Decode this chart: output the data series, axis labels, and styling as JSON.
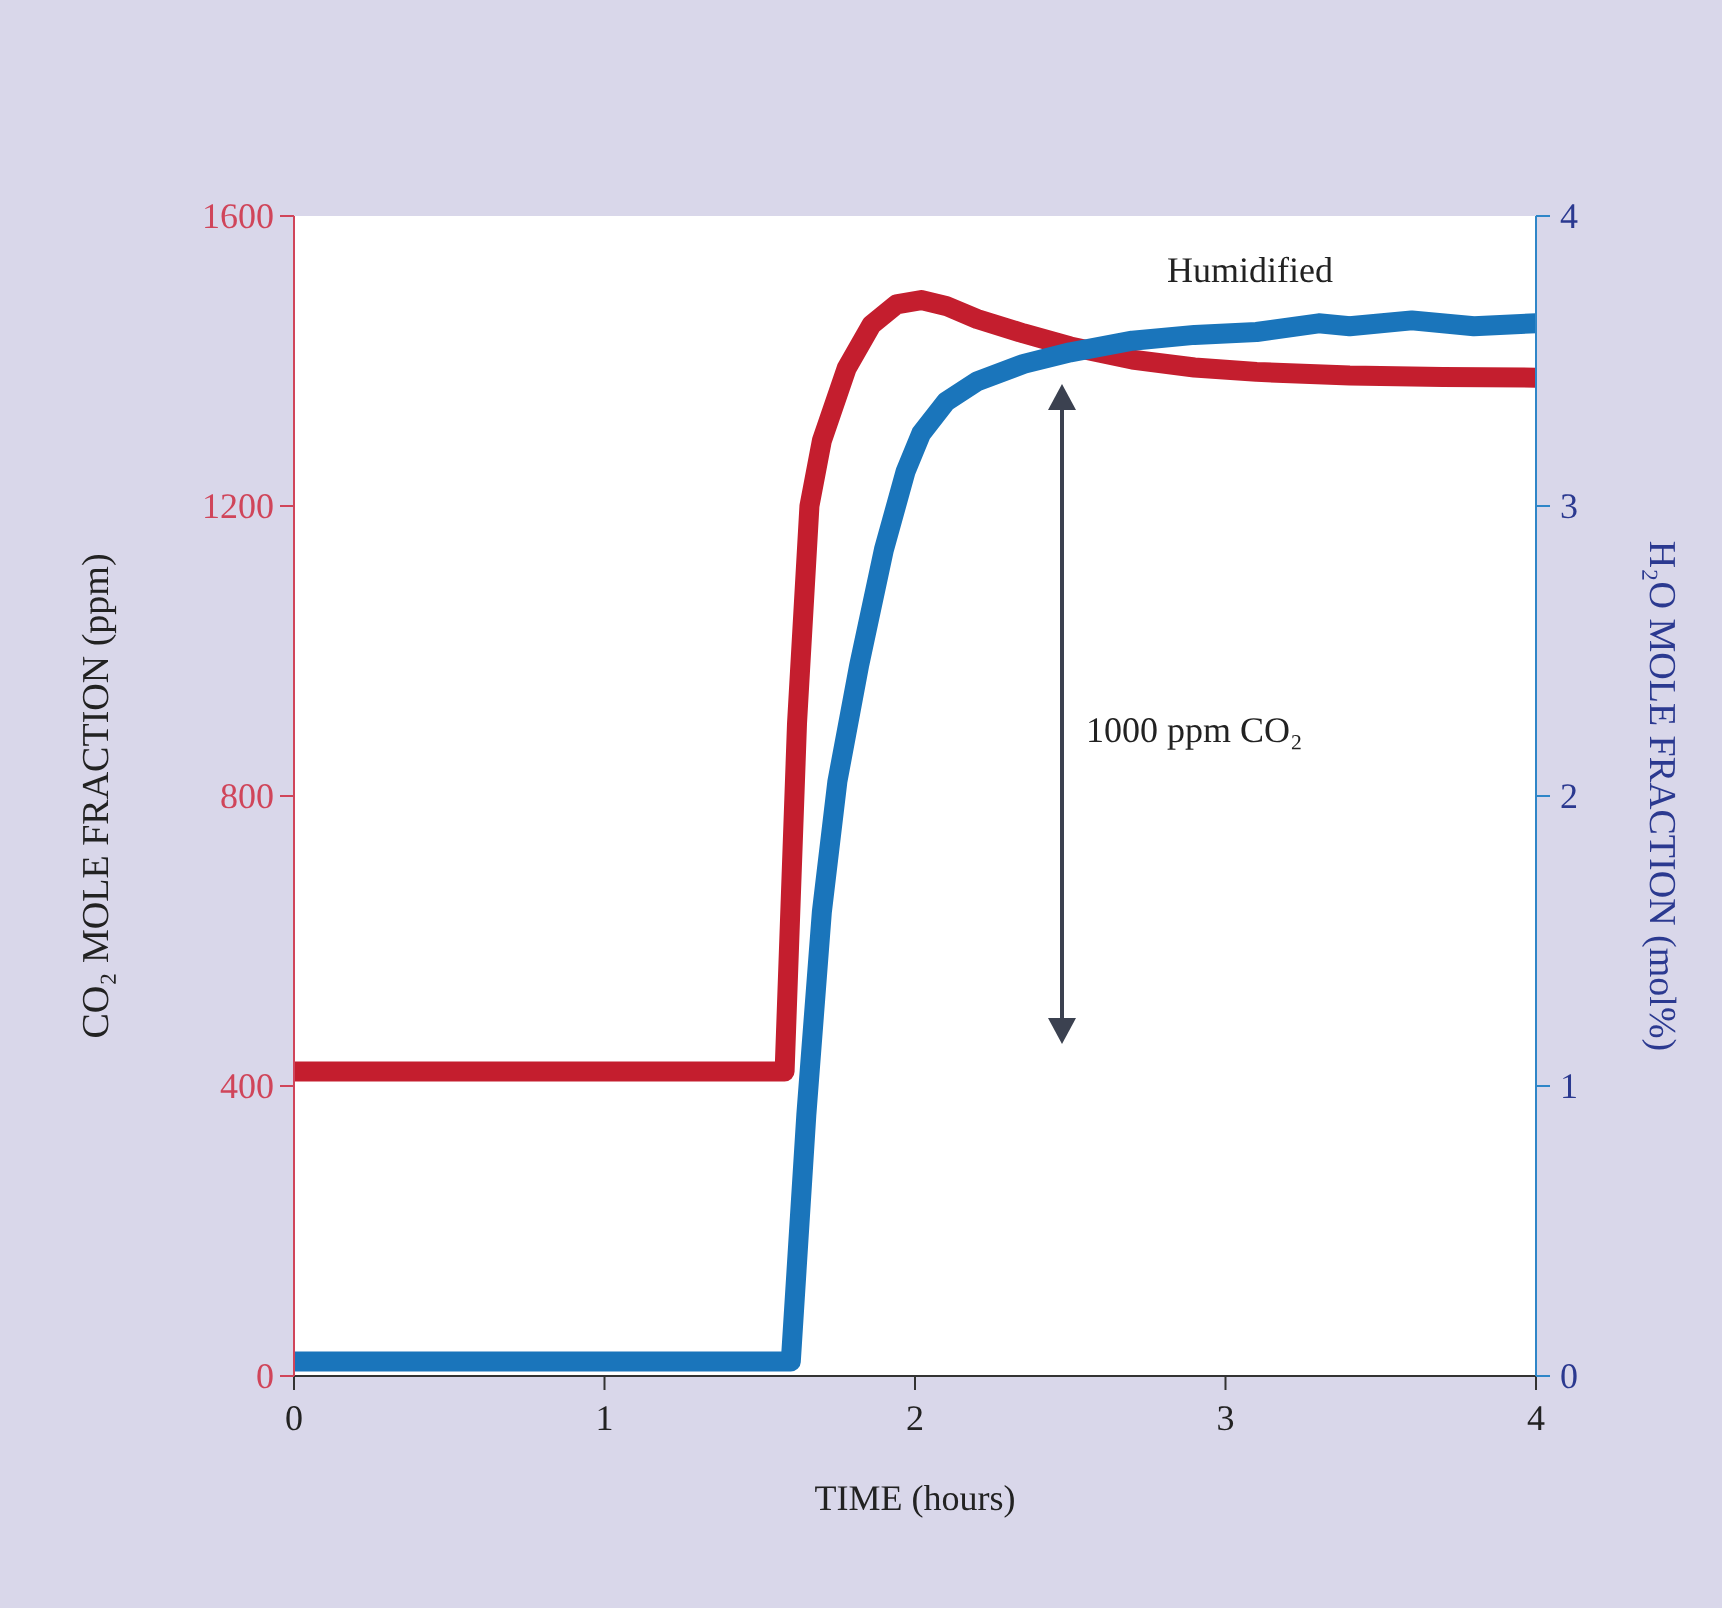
{
  "chart_data": {
    "type": "line",
    "xlabel": "TIME (hours)",
    "ylabel": "CO₂ MOLE FRACTION (ppm)",
    "y2label": "H₂O MOLE FRACTION (mol%)",
    "xlim": [
      0,
      4
    ],
    "xticks": [
      0,
      1,
      2,
      3,
      4
    ],
    "ylim": [
      0,
      1600
    ],
    "yticks": [
      0,
      400,
      800,
      1200,
      1600
    ],
    "y2lim": [
      0,
      4
    ],
    "y2ticks": [
      0,
      1,
      2,
      3,
      4
    ],
    "grid": false,
    "marker": "none",
    "line_style": "solid",
    "series": [
      {
        "color": "#c41e2e",
        "x": [
          0,
          0.5,
          1,
          1.58,
          1.62,
          1.66,
          1.7,
          1.78,
          1.86,
          1.94,
          2.02,
          2.1,
          2.2,
          2.35,
          2.5,
          2.7,
          2.9,
          3.1,
          3.4,
          3.7,
          4
        ],
        "values": [
          420,
          420,
          420,
          420,
          900,
          1200,
          1290,
          1390,
          1450,
          1478,
          1484,
          1476,
          1458,
          1438,
          1420,
          1402,
          1391,
          1385,
          1380,
          1378,
          1377
        ]
      },
      {
        "color": "#1a75bb",
        "axis": "y2",
        "x": [
          0,
          0.5,
          1,
          1.6,
          1.65,
          1.7,
          1.75,
          1.82,
          1.9,
          1.97,
          2.02,
          2.1,
          2.2,
          2.35,
          2.5,
          2.7,
          2.9,
          3.1,
          3.3,
          3.4,
          3.6,
          3.8,
          4
        ],
        "values": [
          0.05,
          0.05,
          0.05,
          0.05,
          0.9,
          1.6,
          2.05,
          2.45,
          2.85,
          3.12,
          3.25,
          3.36,
          3.43,
          3.49,
          3.53,
          3.57,
          3.59,
          3.6,
          3.63,
          3.62,
          3.64,
          3.62,
          3.63
        ]
      }
    ],
    "annotations": [
      "Humidified",
      "1000 ppm CO₂"
    ]
  }
}
